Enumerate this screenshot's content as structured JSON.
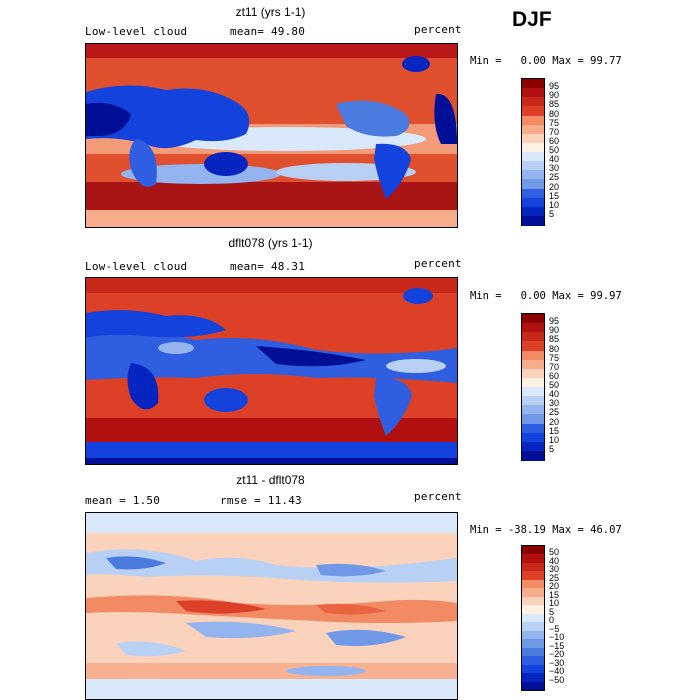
{
  "season": "DJF",
  "warm_colors": [
    "#8b0000",
    "#b01010",
    "#c8281a",
    "#dc4127",
    "#ea6442",
    "#f28a64",
    "#f7ad8c",
    "#fbd2bb",
    "#fff0e4"
  ],
  "cool_colors": [
    "#d9e8fb",
    "#b9d0f5",
    "#93b4ee",
    "#6f98e6",
    "#4c7be0",
    "#2f5ee0",
    "#1442dc",
    "#0624c0",
    "#000f96"
  ],
  "panels": [
    {
      "title": "zt11 (yrs 1-1)",
      "left_label": "Low-level cloud",
      "mean_label": "mean=",
      "mean_value": "49.80",
      "units": "percent",
      "min_label": "Min =",
      "min_value": "0.00",
      "max_label": "Max =",
      "max_value": "99.77",
      "colorbar_levels": [
        "95",
        "90",
        "85",
        "80",
        "75",
        "70",
        "60",
        "50",
        "40",
        "30",
        "25",
        "20",
        "15",
        "10",
        "5"
      ]
    },
    {
      "title": "dflt078 (yrs 1-1)",
      "left_label": "Low-level cloud",
      "mean_label": "mean=",
      "mean_value": "48.31",
      "units": "percent",
      "min_label": "Min =",
      "min_value": "0.00",
      "max_label": "Max =",
      "max_value": "99.97",
      "colorbar_levels": [
        "95",
        "90",
        "85",
        "80",
        "75",
        "70",
        "60",
        "50",
        "40",
        "30",
        "25",
        "20",
        "15",
        "10",
        "5"
      ]
    },
    {
      "title": "zt11 - dflt078",
      "left_label": "mean =",
      "mean_label": "",
      "mean_value": "1.50",
      "rmse_label": "rmse =",
      "rmse_value": "11.43",
      "units": "percent",
      "min_label": "Min =",
      "min_value": "-38.19",
      "max_label": "Max =",
      "max_value": "46.07",
      "colorbar_levels": [
        "50",
        "40",
        "30",
        "25",
        "20",
        "15",
        "10",
        "5",
        "0",
        "−5",
        "−10",
        "−15",
        "−20",
        "−30",
        "−40",
        "−50"
      ]
    }
  ]
}
